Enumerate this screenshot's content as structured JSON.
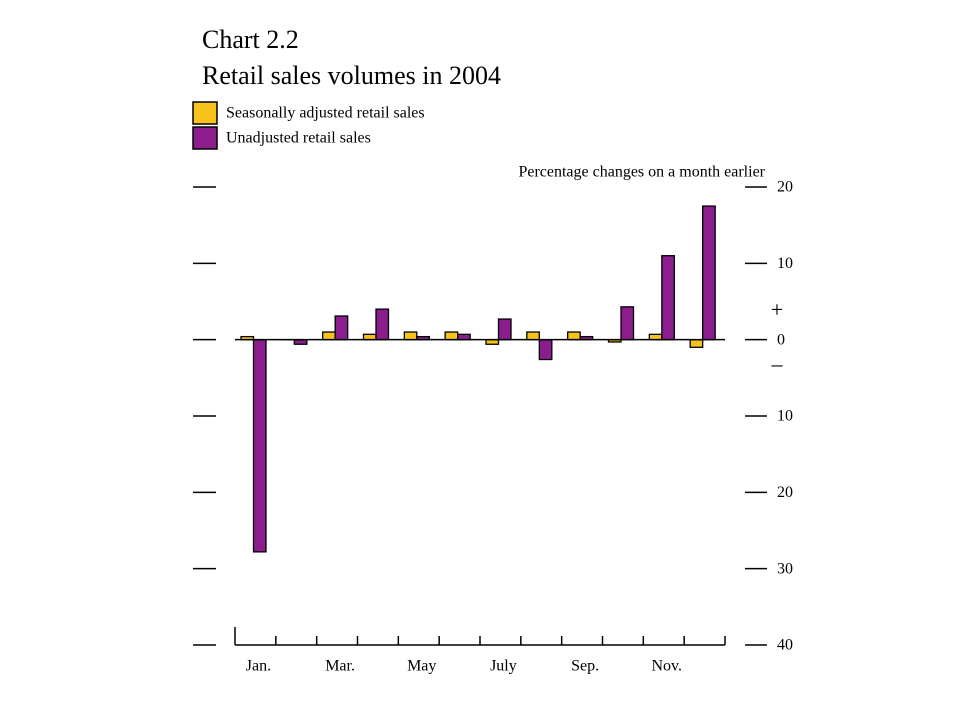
{
  "chart_data": {
    "type": "bar",
    "title": "Chart 2.2",
    "subtitle": "Retail sales volumes in 2004",
    "y_axis_label": "Percentage changes on a month earlier",
    "positive_sign": "+",
    "negative_sign": "–",
    "categories": [
      "Jan.",
      null,
      "Mar.",
      null,
      "May",
      null,
      "July",
      null,
      "Sep.",
      null,
      "Nov.",
      null
    ],
    "series": [
      {
        "name": "Seasonally adjusted retail sales",
        "color": "#f7c21b",
        "values": [
          0.4,
          0,
          1.0,
          0.7,
          1.0,
          1.0,
          -0.6,
          1.0,
          1.0,
          -0.3,
          0.7,
          -1.0
        ]
      },
      {
        "name": "Unadjusted retail sales",
        "color": "#8b1e8c",
        "values": [
          -27.8,
          -0.6,
          3.1,
          4.0,
          0.4,
          0.7,
          2.7,
          -2.6,
          0.4,
          4.3,
          11.0,
          17.5
        ]
      }
    ],
    "ylim": [
      -40,
      20
    ],
    "yticks": [
      20,
      10,
      0,
      {
        "value": -10,
        "label": "10"
      },
      {
        "value": -20,
        "label": "20"
      },
      {
        "value": -30,
        "label": "30"
      },
      {
        "value": -40,
        "label": "40"
      }
    ]
  }
}
